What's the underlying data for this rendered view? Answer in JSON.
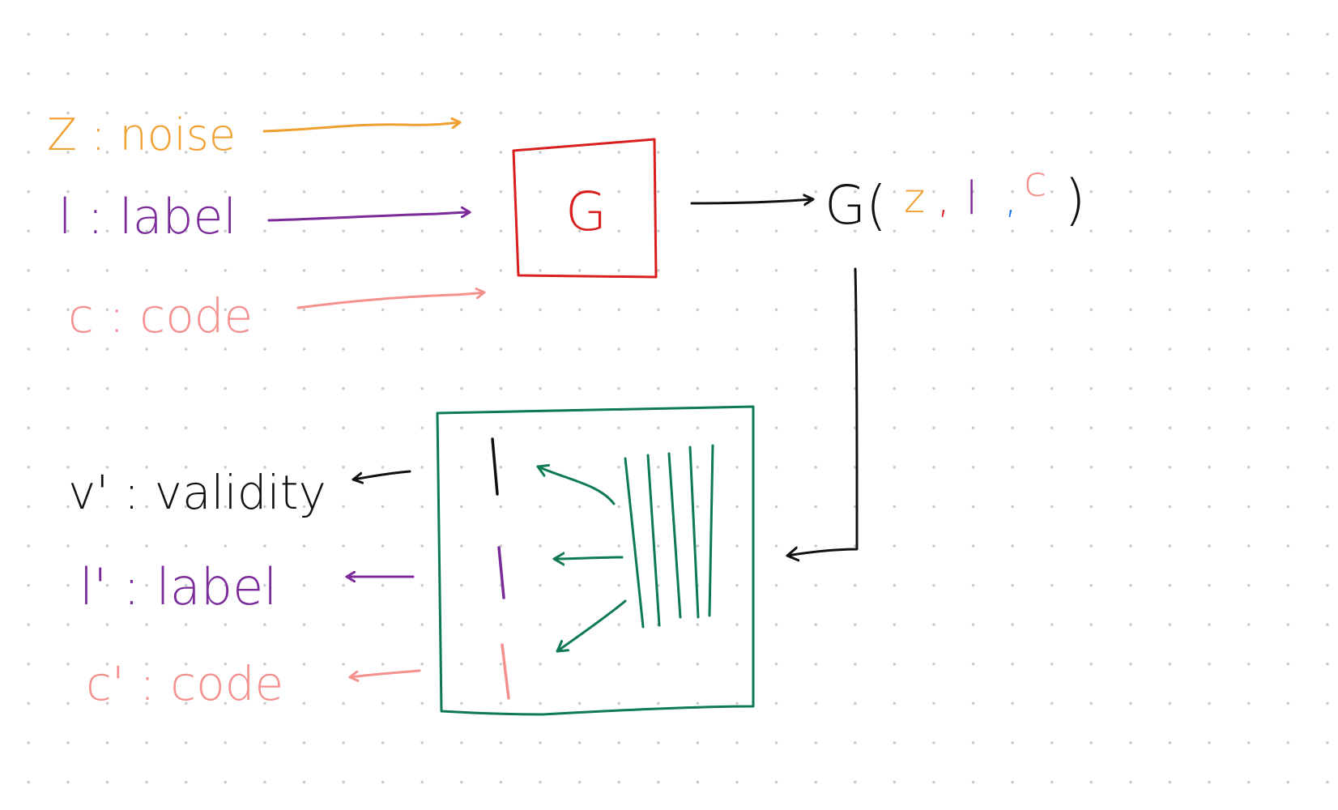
{
  "colors": {
    "noise": "#f0a030",
    "label": "#7b2a9a",
    "code": "#f4908e",
    "generator": "#d81e1e",
    "discriminator": "#0e7a52",
    "ink": "#111111",
    "accent_blue": "#1a74e8"
  },
  "inputs": {
    "noise": "Z : noise",
    "label": "l : label",
    "code": "c : code"
  },
  "generator": {
    "label": "G"
  },
  "output": {
    "func": "G(",
    "z": "z",
    "comma1": ",",
    "l": "l",
    "comma2": ",",
    "c": "c",
    "close": ")"
  },
  "outputs": {
    "validity": "v' : validity",
    "label": "l' : label",
    "code": "c' : code"
  }
}
